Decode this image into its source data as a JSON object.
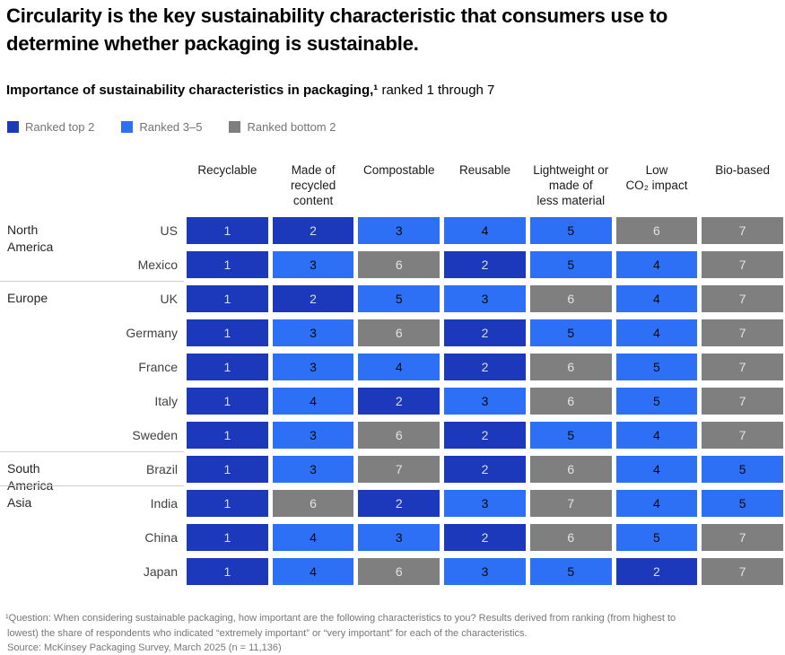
{
  "page": {
    "title": "Circularity is the key sustainability characteristic that consumers use to determine whether packaging is sustainable.",
    "subtitle_bold": "Importance of sustainability characteristics in packaging,¹",
    "subtitle_rest": " ranked 1 through 7"
  },
  "legend": {
    "items": [
      {
        "name": "ranked-top-2",
        "label": "Ranked top 2",
        "color": "#1C39BB"
      },
      {
        "name": "ranked-3-5",
        "label": "Ranked 3–5",
        "color": "#2D70F5"
      },
      {
        "name": "ranked-bottom-2",
        "label": "Ranked bottom 2",
        "color": "#7F7F7F"
      }
    ]
  },
  "colors": {
    "rank_top2": "#1C39BB",
    "rank_mid": "#2D70F5",
    "rank_bottom2": "#7F7F7F",
    "text_on_dark": "#D7DBEA",
    "text_on_mid": "#0A0A0A",
    "text_on_gray": "#E3E3E3",
    "divider": "#CCCCCC"
  },
  "chart_data": {
    "type": "heatmap",
    "title": "Importance of sustainability characteristics in packaging, ranked 1 through 7",
    "columns": [
      "Recyclable",
      "Made of recycled content",
      "Compostable",
      "Reusable",
      "Lightweight or made of less material",
      "Low CO₂ impact",
      "Bio-based"
    ],
    "column_lines": [
      [
        "Recyclable"
      ],
      [
        "Made of",
        "recycled",
        "content"
      ],
      [
        "Compostable"
      ],
      [
        "Reusable"
      ],
      [
        "Lightweight or",
        "made of",
        "less material"
      ],
      [
        "Low",
        "CO₂ impact"
      ],
      [
        "Bio-based"
      ]
    ],
    "rank_bands": [
      {
        "label": "Ranked top 2",
        "ranks": [
          1,
          2
        ],
        "class": "dark"
      },
      {
        "label": "Ranked 3–5",
        "ranks": [
          3,
          4,
          5
        ],
        "class": "mid"
      },
      {
        "label": "Ranked bottom 2",
        "ranks": [
          6,
          7
        ],
        "class": "gray"
      }
    ],
    "groups": [
      {
        "region": "North America",
        "rows": [
          {
            "country": "US",
            "values": [
              1,
              2,
              3,
              4,
              5,
              6,
              7
            ]
          },
          {
            "country": "Mexico",
            "values": [
              1,
              3,
              6,
              2,
              5,
              4,
              7
            ]
          }
        ]
      },
      {
        "region": "Europe",
        "rows": [
          {
            "country": "UK",
            "values": [
              1,
              2,
              5,
              3,
              6,
              4,
              7
            ]
          },
          {
            "country": "Germany",
            "values": [
              1,
              3,
              6,
              2,
              5,
              4,
              7
            ]
          },
          {
            "country": "France",
            "values": [
              1,
              3,
              4,
              2,
              6,
              5,
              7
            ]
          },
          {
            "country": "Italy",
            "values": [
              1,
              4,
              2,
              3,
              6,
              5,
              7
            ]
          },
          {
            "country": "Sweden",
            "values": [
              1,
              3,
              6,
              2,
              5,
              4,
              7
            ]
          }
        ]
      },
      {
        "region": "South America",
        "rows": [
          {
            "country": "Brazil",
            "values": [
              1,
              3,
              7,
              2,
              6,
              4,
              5
            ]
          }
        ]
      },
      {
        "region": "Asia",
        "rows": [
          {
            "country": "India",
            "values": [
              1,
              6,
              2,
              3,
              7,
              4,
              5
            ]
          },
          {
            "country": "China",
            "values": [
              1,
              4,
              3,
              2,
              6,
              5,
              7
            ]
          },
          {
            "country": "Japan",
            "values": [
              1,
              4,
              6,
              3,
              5,
              2,
              7
            ]
          }
        ]
      }
    ]
  },
  "footnote": {
    "lines": [
      "¹Question: When considering sustainable packaging, how important are the following characteristics to you? Results derived from ranking (from highest to",
      "lowest) the share of respondents who indicated “extremely important” or “very important” for each of the characteristics.",
      "Source: McKinsey Packaging Survey, March 2025 (n = 11,136)"
    ]
  }
}
